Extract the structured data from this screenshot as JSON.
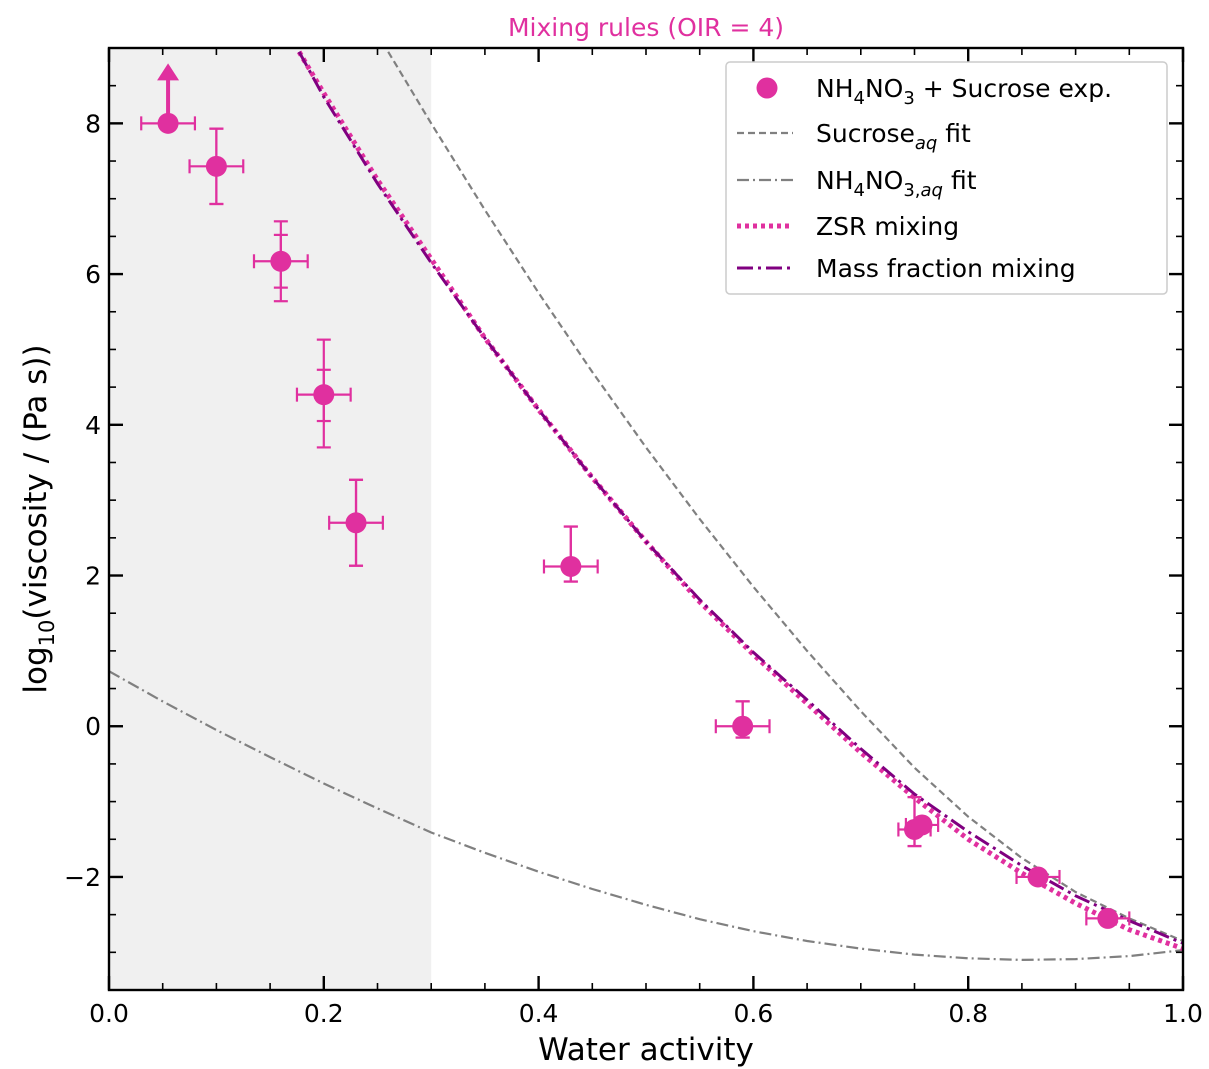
{
  "chart_data": {
    "type": "scatter",
    "title": "Mixing rules (OIR = 4)",
    "title_color": "#e0309f",
    "xlabel": "Water activity",
    "ylabel_parts": {
      "base": "log",
      "sub": "10",
      "rest": "(viscosity / (Pa s))"
    },
    "xlim": [
      0.0,
      1.0
    ],
    "ylim": [
      -3.5,
      9.0
    ],
    "xticks": [
      0.0,
      0.2,
      0.4,
      0.6,
      0.8,
      1.0
    ],
    "xtick_labels": [
      "0.0",
      "0.2",
      "0.4",
      "0.6",
      "0.8",
      "1.0"
    ],
    "yticks": [
      -2,
      0,
      2,
      4,
      6,
      8
    ],
    "ytick_labels": [
      "−2",
      "0",
      "2",
      "4",
      "6",
      "8"
    ],
    "grid": false,
    "legend_position": "top-right",
    "shaded_region": {
      "x_from": 0.0,
      "x_to": 0.3,
      "color": "#f0f0f0"
    },
    "colors": {
      "experiment": "#e0309f",
      "sucrose_fit": "#808080",
      "nh4no3_fit": "#808080",
      "zsr": "#e0309f",
      "mass_fraction": "#800080"
    },
    "experiment": {
      "points": [
        {
          "x": 0.055,
          "y": 8.0,
          "xerr": 0.025,
          "yerr_low": 0.0,
          "yerr_high": 0.0,
          "yerr_low2": 0.0,
          "yerr_high2": 0.0,
          "lower_limit": true
        },
        {
          "x": 0.1,
          "y": 7.43,
          "xerr": 0.025,
          "yerr_low": 0.5,
          "yerr_high": 0.5,
          "yerr_low2": 0.5,
          "yerr_high2": 0.5,
          "lower_limit": false
        },
        {
          "x": 0.16,
          "y": 6.17,
          "xerr": 0.025,
          "yerr_low": 0.53,
          "yerr_high": 0.53,
          "yerr_low2": 0.35,
          "yerr_high2": 0.35,
          "lower_limit": false
        },
        {
          "x": 0.2,
          "y": 4.4,
          "xerr": 0.025,
          "yerr_low": 0.7,
          "yerr_high": 0.73,
          "yerr_low2": 0.35,
          "yerr_high2": 0.33,
          "lower_limit": false
        },
        {
          "x": 0.23,
          "y": 2.7,
          "xerr": 0.025,
          "yerr_low": 0.57,
          "yerr_high": 0.57,
          "yerr_low2": 0.57,
          "yerr_high2": 0.57,
          "lower_limit": false
        },
        {
          "x": 0.43,
          "y": 2.12,
          "xerr": 0.025,
          "yerr_low": 0.2,
          "yerr_high": 0.53,
          "yerr_low2": 0.2,
          "yerr_high2": 0.53,
          "lower_limit": false
        },
        {
          "x": 0.59,
          "y": 0.0,
          "xerr": 0.025,
          "yerr_low": 0.15,
          "yerr_high": 0.33,
          "yerr_low2": 0.15,
          "yerr_high2": 0.33,
          "lower_limit": false
        },
        {
          "x": 0.75,
          "y": -1.37,
          "xerr": 0.015,
          "yerr_low": 0.22,
          "yerr_high": 0.43,
          "yerr_low2": 0.22,
          "yerr_high2": 0.43,
          "lower_limit": false
        },
        {
          "x": 0.757,
          "y": -1.31,
          "xerr": 0.015,
          "yerr_low": 0.05,
          "yerr_high": 0.05,
          "yerr_low2": 0.05,
          "yerr_high2": 0.05,
          "lower_limit": false
        },
        {
          "x": 0.865,
          "y": -2.0,
          "xerr": 0.02,
          "yerr_low": 0.0,
          "yerr_high": 0.0,
          "yerr_low2": 0.0,
          "yerr_high2": 0.0,
          "lower_limit": false
        },
        {
          "x": 0.93,
          "y": -2.55,
          "xerr": 0.02,
          "yerr_low": 0.0,
          "yerr_high": 0.0,
          "yerr_low2": 0.0,
          "yerr_high2": 0.0,
          "lower_limit": false
        }
      ]
    },
    "curves": {
      "sucrose_fit": {
        "x": [
          0.26,
          0.3,
          0.35,
          0.4,
          0.45,
          0.5,
          0.55,
          0.6,
          0.65,
          0.7,
          0.75,
          0.8,
          0.85,
          0.9,
          0.95,
          1.0
        ],
        "y": [
          8.95,
          8.0,
          6.85,
          5.75,
          4.7,
          3.7,
          2.75,
          1.85,
          1.0,
          0.2,
          -0.55,
          -1.2,
          -1.75,
          -2.2,
          -2.55,
          -2.85
        ]
      },
      "nh4no3_fit": {
        "x": [
          0.0,
          0.05,
          0.1,
          0.15,
          0.2,
          0.25,
          0.3,
          0.35,
          0.4,
          0.45,
          0.5,
          0.55,
          0.6,
          0.65,
          0.7,
          0.75,
          0.8,
          0.85,
          0.9,
          0.95,
          1.0
        ],
        "y": [
          0.73,
          0.33,
          -0.05,
          -0.41,
          -0.76,
          -1.09,
          -1.41,
          -1.68,
          -1.93,
          -2.16,
          -2.37,
          -2.56,
          -2.72,
          -2.85,
          -2.95,
          -3.03,
          -3.08,
          -3.1,
          -3.09,
          -3.05,
          -2.97
        ]
      },
      "zsr_mixing": {
        "x": [
          0.177,
          0.2,
          0.25,
          0.3,
          0.35,
          0.4,
          0.45,
          0.5,
          0.55,
          0.6,
          0.65,
          0.7,
          0.75,
          0.8,
          0.85,
          0.9,
          0.95,
          1.0
        ],
        "y": [
          8.95,
          8.4,
          7.25,
          6.2,
          5.15,
          4.2,
          3.3,
          2.45,
          1.65,
          0.95,
          0.3,
          -0.35,
          -0.95,
          -1.5,
          -1.95,
          -2.35,
          -2.7,
          -2.95
        ]
      },
      "mass_fraction_mixing": {
        "x": [
          0.177,
          0.2,
          0.25,
          0.3,
          0.35,
          0.4,
          0.45,
          0.5,
          0.55,
          0.6,
          0.65,
          0.7,
          0.75,
          0.8,
          0.85,
          0.9,
          0.95,
          1.0
        ],
        "y": [
          8.95,
          8.35,
          7.2,
          6.15,
          5.15,
          4.2,
          3.3,
          2.45,
          1.68,
          0.98,
          0.35,
          -0.3,
          -0.9,
          -1.4,
          -1.85,
          -2.25,
          -2.58,
          -2.88
        ]
      }
    },
    "legend": [
      {
        "key": "experiment",
        "parts": [
          {
            "t": "NH"
          },
          {
            "t": "4",
            "sub": true
          },
          {
            "t": "NO"
          },
          {
            "t": "3",
            "sub": true
          },
          {
            "t": " + Sucrose exp."
          }
        ]
      },
      {
        "key": "sucrose_fit",
        "parts": [
          {
            "t": "Sucrose"
          },
          {
            "t": "aq",
            "sub": true,
            "italic": true
          },
          {
            "t": " fit"
          }
        ]
      },
      {
        "key": "nh4no3_fit",
        "parts": [
          {
            "t": "NH"
          },
          {
            "t": "4",
            "sub": true
          },
          {
            "t": "NO"
          },
          {
            "t": "3,",
            "sub": true
          },
          {
            "t": "aq",
            "sub": true,
            "italic": true
          },
          {
            "t": " fit"
          }
        ]
      },
      {
        "key": "zsr",
        "parts": [
          {
            "t": "ZSR mixing"
          }
        ]
      },
      {
        "key": "mass_fraction",
        "parts": [
          {
            "t": "Mass fraction mixing"
          }
        ]
      }
    ]
  }
}
